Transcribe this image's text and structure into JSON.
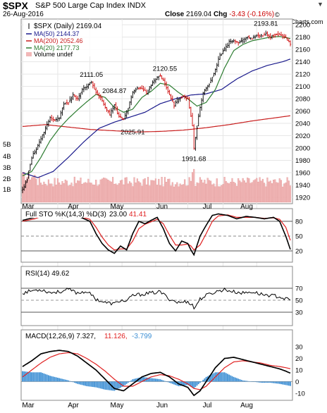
{
  "header": {
    "ticker": "$SPX",
    "name": "S&P 500 Large Cap Index",
    "exchange": "INDX",
    "date": "26-Aug-2016",
    "close_label": "Close",
    "close_value": "2169.04",
    "chg_label": "Chg",
    "chg_value": "-3.43 (-0.16%)",
    "logo": "© StockCharts.com",
    "menu_icon": "triangle-down-icon"
  },
  "colors": {
    "up": "#000000",
    "down": "#cc0000",
    "ma50": "#1a1a8c",
    "ma200": "#c81e1e",
    "ma20": "#2e7d32",
    "volume": "#f2b8b8",
    "histogram": "#3d8fd4",
    "sto_k": "#000000",
    "sto_d": "#e02020",
    "rsi": "#000000",
    "macd": "#000000",
    "signal": "#e02020"
  },
  "chart_data": [
    {
      "type": "line",
      "panel": "price",
      "legend": {
        "series_label": "$SPX (Daily) 2169.04",
        "ma50": "MA(50) 2144.37",
        "ma200": "MA(200) 2052.46",
        "ma20": "MA(20) 2177.73",
        "volume": "Volume undef"
      },
      "x_ticks": [
        "Mar",
        "Apr",
        "May",
        "Jun",
        "Jul",
        "Aug"
      ],
      "y_ticks": [
        1920,
        1940,
        1960,
        1980,
        2000,
        2020,
        2040,
        2060,
        2080,
        2100,
        2120,
        2140,
        2160,
        2180,
        2200
      ],
      "ylim": [
        1912,
        2207
      ],
      "volume_ticks": [
        "5B",
        "4B",
        "3B",
        "2B",
        "1B"
      ],
      "annotations": [
        {
          "label": "2111.05",
          "value": 2111.05
        },
        {
          "label": "2084.87",
          "value": 2084.87
        },
        {
          "label": "2120.55",
          "value": 2120.55
        },
        {
          "label": "2025.91",
          "value": 2025.91
        },
        {
          "label": "1991.68",
          "value": 1991.68
        },
        {
          "label": "2193.81",
          "value": 2193.81
        }
      ],
      "close_anchors": [
        [
          0,
          1932
        ],
        [
          3,
          1950
        ],
        [
          6,
          1985
        ],
        [
          9,
          1999
        ],
        [
          12,
          2015
        ],
        [
          15,
          2032
        ],
        [
          18,
          2048
        ],
        [
          21,
          2045
        ],
        [
          24,
          2050
        ],
        [
          27,
          2072
        ],
        [
          30,
          2075
        ],
        [
          33,
          2085
        ],
        [
          36,
          2080
        ],
        [
          39,
          2095
        ],
        [
          42,
          2100
        ],
        [
          45,
          2108
        ],
        [
          48,
          2090
        ],
        [
          51,
          2081
        ],
        [
          54,
          2065
        ],
        [
          57,
          2055
        ],
        [
          60,
          2070
        ],
        [
          63,
          2050
        ],
        [
          66,
          2047
        ],
        [
          69,
          2065
        ],
        [
          72,
          2090
        ],
        [
          75,
          2098
        ],
        [
          78,
          2096
        ],
        [
          81,
          2090
        ],
        [
          84,
          2103
        ],
        [
          87,
          2112
        ],
        [
          90,
          2118
        ],
        [
          93,
          2104
        ],
        [
          96,
          2085
        ],
        [
          99,
          2070
        ],
        [
          102,
          2080
        ],
        [
          105,
          2085
        ],
        [
          108,
          2080
        ],
        [
          111,
          2037
        ],
        [
          112,
          2000
        ],
        [
          115,
          2052
        ],
        [
          118,
          2090
        ],
        [
          121,
          2100
        ],
        [
          123,
          2110
        ],
        [
          126,
          2128
        ],
        [
          129,
          2151
        ],
        [
          132,
          2160
        ],
        [
          135,
          2172
        ],
        [
          138,
          2175
        ],
        [
          141,
          2170
        ],
        [
          144,
          2174
        ],
        [
          147,
          2180
        ],
        [
          150,
          2178
        ],
        [
          153,
          2182
        ],
        [
          156,
          2183
        ],
        [
          159,
          2186
        ],
        [
          162,
          2180
        ],
        [
          165,
          2185
        ],
        [
          168,
          2184
        ],
        [
          171,
          2181
        ],
        [
          174,
          2172
        ],
        [
          175,
          2169
        ]
      ],
      "ma50_anchors": [
        [
          0,
          1960
        ],
        [
          10,
          1952
        ],
        [
          20,
          1962
        ],
        [
          30,
          1985
        ],
        [
          40,
          2010
        ],
        [
          50,
          2032
        ],
        [
          60,
          2042
        ],
        [
          70,
          2050
        ],
        [
          80,
          2058
        ],
        [
          90,
          2072
        ],
        [
          100,
          2080
        ],
        [
          110,
          2086
        ],
        [
          120,
          2088
        ],
        [
          130,
          2095
        ],
        [
          140,
          2112
        ],
        [
          150,
          2125
        ],
        [
          160,
          2134
        ],
        [
          170,
          2140
        ],
        [
          175,
          2144.37
        ]
      ],
      "ma200_anchors": [
        [
          0,
          2035
        ],
        [
          15,
          2038
        ],
        [
          30,
          2034
        ],
        [
          45,
          2030
        ],
        [
          60,
          2028
        ],
        [
          75,
          2026
        ],
        [
          90,
          2027
        ],
        [
          105,
          2029
        ],
        [
          120,
          2033
        ],
        [
          135,
          2038
        ],
        [
          150,
          2044
        ],
        [
          165,
          2049
        ],
        [
          175,
          2052.46
        ]
      ],
      "ma20_anchors": [
        [
          0,
          1955
        ],
        [
          6,
          1962
        ],
        [
          12,
          1985
        ],
        [
          18,
          2012
        ],
        [
          24,
          2032
        ],
        [
          30,
          2048
        ],
        [
          36,
          2062
        ],
        [
          42,
          2075
        ],
        [
          48,
          2087
        ],
        [
          54,
          2082
        ],
        [
          60,
          2066
        ],
        [
          66,
          2058
        ],
        [
          72,
          2063
        ],
        [
          78,
          2082
        ],
        [
          84,
          2092
        ],
        [
          90,
          2105
        ],
        [
          96,
          2102
        ],
        [
          102,
          2090
        ],
        [
          108,
          2080
        ],
        [
          114,
          2068
        ],
        [
          120,
          2074
        ],
        [
          126,
          2095
        ],
        [
          132,
          2130
        ],
        [
          138,
          2158
        ],
        [
          144,
          2168
        ],
        [
          150,
          2174
        ],
        [
          156,
          2177
        ],
        [
          162,
          2180
        ],
        [
          168,
          2181
        ],
        [
          175,
          2177.73
        ]
      ]
    },
    {
      "type": "line",
      "panel": "full_stochastic",
      "label_main": "Full STO %K(14,3) %D(3)",
      "label_k": "23.00",
      "label_d": "41.41",
      "ylim": [
        0,
        100
      ],
      "y_ticks": [
        20,
        50,
        80
      ],
      "levels": [
        80,
        50,
        20
      ],
      "k_anchors": [
        [
          0,
          82
        ],
        [
          8,
          88
        ],
        [
          14,
          95
        ],
        [
          20,
          90
        ],
        [
          26,
          88
        ],
        [
          32,
          92
        ],
        [
          38,
          88
        ],
        [
          44,
          80
        ],
        [
          48,
          55
        ],
        [
          52,
          35
        ],
        [
          56,
          22
        ],
        [
          60,
          15
        ],
        [
          64,
          30
        ],
        [
          68,
          22
        ],
        [
          72,
          55
        ],
        [
          76,
          80
        ],
        [
          80,
          75
        ],
        [
          84,
          82
        ],
        [
          88,
          88
        ],
        [
          92,
          65
        ],
        [
          96,
          35
        ],
        [
          100,
          20
        ],
        [
          104,
          40
        ],
        [
          108,
          35
        ],
        [
          110,
          22
        ],
        [
          112,
          12
        ],
        [
          116,
          50
        ],
        [
          120,
          72
        ],
        [
          124,
          92
        ],
        [
          128,
          95
        ],
        [
          134,
          92
        ],
        [
          140,
          85
        ],
        [
          146,
          90
        ],
        [
          152,
          88
        ],
        [
          158,
          85
        ],
        [
          164,
          88
        ],
        [
          168,
          80
        ],
        [
          172,
          50
        ],
        [
          175,
          23
        ]
      ],
      "d_anchors": [
        [
          0,
          80
        ],
        [
          8,
          85
        ],
        [
          14,
          92
        ],
        [
          20,
          91
        ],
        [
          26,
          89
        ],
        [
          32,
          90
        ],
        [
          38,
          89
        ],
        [
          44,
          84
        ],
        [
          48,
          68
        ],
        [
          52,
          48
        ],
        [
          56,
          32
        ],
        [
          60,
          22
        ],
        [
          64,
          24
        ],
        [
          68,
          24
        ],
        [
          72,
          40
        ],
        [
          76,
          65
        ],
        [
          80,
          74
        ],
        [
          84,
          79
        ],
        [
          88,
          84
        ],
        [
          92,
          75
        ],
        [
          96,
          52
        ],
        [
          100,
          32
        ],
        [
          104,
          32
        ],
        [
          108,
          34
        ],
        [
          110,
          30
        ],
        [
          112,
          22
        ],
        [
          116,
          32
        ],
        [
          120,
          55
        ],
        [
          124,
          80
        ],
        [
          128,
          91
        ],
        [
          134,
          93
        ],
        [
          140,
          88
        ],
        [
          146,
          88
        ],
        [
          152,
          88
        ],
        [
          158,
          86
        ],
        [
          164,
          87
        ],
        [
          168,
          84
        ],
        [
          172,
          68
        ],
        [
          175,
          41.41
        ]
      ]
    },
    {
      "type": "line",
      "panel": "rsi",
      "label": "RSI(14) 49.62",
      "ylim": [
        0,
        100
      ],
      "y_ticks": [
        30,
        50,
        70
      ],
      "levels": [
        70,
        30
      ],
      "rsi_anchors": [
        [
          0,
          62
        ],
        [
          6,
          66
        ],
        [
          12,
          68
        ],
        [
          18,
          63
        ],
        [
          24,
          64
        ],
        [
          30,
          68
        ],
        [
          36,
          62
        ],
        [
          42,
          65
        ],
        [
          48,
          52
        ],
        [
          54,
          46
        ],
        [
          60,
          44
        ],
        [
          64,
          50
        ],
        [
          68,
          48
        ],
        [
          72,
          58
        ],
        [
          78,
          60
        ],
        [
          84,
          62
        ],
        [
          90,
          64
        ],
        [
          96,
          52
        ],
        [
          102,
          46
        ],
        [
          108,
          48
        ],
        [
          111,
          42
        ],
        [
          112,
          36
        ],
        [
          116,
          52
        ],
        [
          120,
          58
        ],
        [
          126,
          64
        ],
        [
          132,
          68
        ],
        [
          138,
          64
        ],
        [
          144,
          62
        ],
        [
          150,
          64
        ],
        [
          156,
          60
        ],
        [
          162,
          58
        ],
        [
          168,
          56
        ],
        [
          172,
          52
        ],
        [
          175,
          49.62
        ]
      ]
    },
    {
      "type": "line",
      "panel": "macd",
      "label_main": "MACD(12,26,9) 7.327,",
      "label_signal": "11.126,",
      "label_hist": "-3.799",
      "ylim": [
        -15,
        35
      ],
      "y_ticks": [
        -10,
        0,
        10,
        20,
        30
      ],
      "macd_anchors": [
        [
          0,
          13
        ],
        [
          6,
          18
        ],
        [
          12,
          24
        ],
        [
          18,
          26
        ],
        [
          24,
          27
        ],
        [
          30,
          26
        ],
        [
          36,
          22
        ],
        [
          42,
          16
        ],
        [
          48,
          10
        ],
        [
          54,
          2
        ],
        [
          60,
          -6
        ],
        [
          66,
          -8
        ],
        [
          72,
          -2
        ],
        [
          78,
          4
        ],
        [
          84,
          7
        ],
        [
          90,
          8
        ],
        [
          96,
          4
        ],
        [
          102,
          -2
        ],
        [
          108,
          -5
        ],
        [
          112,
          -12
        ],
        [
          116,
          -8
        ],
        [
          120,
          0
        ],
        [
          126,
          12
        ],
        [
          132,
          20
        ],
        [
          138,
          21
        ],
        [
          144,
          19
        ],
        [
          150,
          17
        ],
        [
          156,
          15
        ],
        [
          162,
          13
        ],
        [
          168,
          11
        ],
        [
          172,
          9
        ],
        [
          175,
          7.327
        ]
      ],
      "signal_anchors": [
        [
          0,
          4
        ],
        [
          6,
          10
        ],
        [
          12,
          16
        ],
        [
          18,
          21
        ],
        [
          24,
          24
        ],
        [
          30,
          25
        ],
        [
          36,
          24
        ],
        [
          42,
          20
        ],
        [
          48,
          15
        ],
        [
          54,
          9
        ],
        [
          60,
          2
        ],
        [
          66,
          -4
        ],
        [
          72,
          -4
        ],
        [
          78,
          0
        ],
        [
          84,
          4
        ],
        [
          90,
          6
        ],
        [
          96,
          5
        ],
        [
          102,
          2
        ],
        [
          108,
          -2
        ],
        [
          112,
          -6
        ],
        [
          116,
          -7
        ],
        [
          120,
          -4
        ],
        [
          126,
          4
        ],
        [
          132,
          12
        ],
        [
          138,
          17
        ],
        [
          144,
          18
        ],
        [
          150,
          17
        ],
        [
          156,
          16
        ],
        [
          162,
          14
        ],
        [
          168,
          13
        ],
        [
          172,
          12
        ],
        [
          175,
          11.126
        ]
      ]
    }
  ]
}
